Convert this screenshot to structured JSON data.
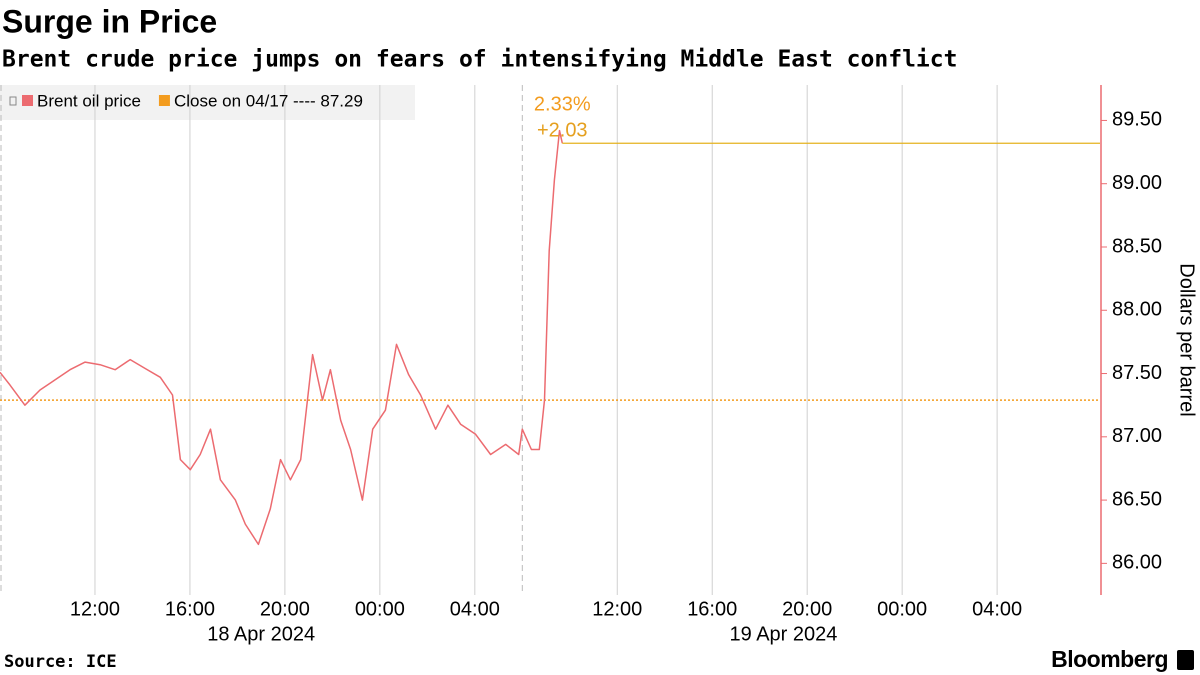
{
  "chart_data": {
    "type": "line",
    "title": "Surge in Price",
    "subtitle": "Brent crude price jumps on fears of intensifying Middle East conflict",
    "y_axis_label": "Dollars per barrel",
    "source": "Source: ICE",
    "brand": "Bloomberg",
    "x": [
      "2024-04-18 08:00",
      "2024-04-18 08:25",
      "2024-04-18 09:03",
      "2024-04-18 09:41",
      "2024-04-18 10:19",
      "2024-04-18 10:57",
      "2024-04-18 11:35",
      "2024-04-18 12:13",
      "2024-04-18 12:51",
      "2024-04-18 13:29",
      "2024-04-18 14:07",
      "2024-04-18 14:45",
      "2024-04-18 15:16",
      "2024-04-18 15:36",
      "2024-04-18 16:01",
      "2024-04-18 16:26",
      "2024-04-18 16:52",
      "2024-04-18 17:17",
      "2024-04-18 17:55",
      "2024-04-18 18:20",
      "2024-04-18 18:53",
      "2024-04-18 19:23",
      "2024-04-18 19:49",
      "2024-04-18 20:14",
      "2024-04-18 20:40",
      "2024-04-18 21:10",
      "2024-04-18 21:35",
      "2024-04-18 21:55",
      "2024-04-18 22:21",
      "2024-04-18 22:46",
      "2024-04-18 23:16",
      "2024-04-18 23:42",
      "2024-04-19 00:14",
      "2024-04-19 00:42",
      "2024-04-19 01:13",
      "2024-04-19 01:43",
      "2024-04-19 02:21",
      "2024-04-19 02:52",
      "2024-04-19 03:24",
      "2024-04-19 04:02",
      "2024-04-19 04:40",
      "2024-04-19 05:18",
      "2024-04-19 05:51",
      "2024-04-19 08:00",
      "2024-04-19 08:23",
      "2024-04-19 08:43",
      "2024-04-19 08:56",
      "2024-04-19 09:08",
      "2024-04-19 09:21",
      "2024-04-19 09:34",
      "2024-04-19 09:41"
    ],
    "series": [
      {
        "name": "Brent oil price",
        "color": "#ec6b70",
        "values": [
          87.51,
          87.41,
          87.25,
          87.37,
          87.45,
          87.53,
          87.59,
          87.57,
          87.53,
          87.61,
          87.54,
          87.47,
          87.33,
          86.82,
          86.74,
          86.86,
          87.06,
          86.66,
          86.5,
          86.31,
          86.15,
          86.43,
          86.82,
          86.66,
          86.82,
          87.65,
          87.29,
          87.53,
          87.13,
          86.9,
          86.5,
          87.06,
          87.21,
          87.73,
          87.49,
          87.33,
          87.06,
          87.25,
          87.1,
          87.02,
          86.86,
          86.94,
          86.86,
          87.06,
          86.9,
          86.9,
          87.29,
          88.47,
          89.03,
          89.42,
          89.32
        ]
      }
    ],
    "reference_line": {
      "name": "Close on 04/17 ---- 87.29",
      "value": 87.29,
      "color": "#f39c1f"
    },
    "last_value_line_color": "#e5b21f",
    "annotations": [
      {
        "text": "2.33%",
        "color": "#f39c1f"
      },
      {
        "text": "+2.03",
        "color": "#e5a01f"
      }
    ],
    "xlim": [
      "2024-04-18 08:00",
      "2024-04-20 08:20"
    ],
    "x_breaks": [
      [
        "2024-04-19 06:00",
        "2024-04-19 08:00"
      ]
    ],
    "xticks": [
      {
        "value": "2024-04-18 12:00",
        "label": "12:00"
      },
      {
        "value": "2024-04-18 16:00",
        "label": "16:00"
      },
      {
        "value": "2024-04-18 20:00",
        "label": "20:00"
      },
      {
        "value": "2024-04-19 00:00",
        "label": "00:00"
      },
      {
        "value": "2024-04-19 04:00",
        "label": "04:00"
      },
      {
        "value": "2024-04-19 12:00",
        "label": "12:00"
      },
      {
        "value": "2024-04-19 16:00",
        "label": "16:00"
      },
      {
        "value": "2024-04-19 20:00",
        "label": "20:00"
      },
      {
        "value": "2024-04-20 00:00",
        "label": "00:00"
      },
      {
        "value": "2024-04-20 04:00",
        "label": "04:00"
      }
    ],
    "x_group_labels": [
      {
        "value": "2024-04-18 19:00",
        "label": "18 Apr 2024"
      },
      {
        "value": "2024-04-19 19:00",
        "label": "19 Apr 2024"
      }
    ],
    "ylim": [
      85.75,
      89.78
    ],
    "yticks": [
      {
        "value": 86,
        "label": "86.00"
      },
      {
        "value": 86.5,
        "label": "86.50"
      },
      {
        "value": 87,
        "label": "87.00"
      },
      {
        "value": 87.5,
        "label": "87.50"
      },
      {
        "value": 88,
        "label": "88.00"
      },
      {
        "value": 88.5,
        "label": "88.50"
      },
      {
        "value": 89,
        "label": "89.00"
      },
      {
        "value": 89.5,
        "label": "89.50"
      }
    ],
    "grid": true
  }
}
